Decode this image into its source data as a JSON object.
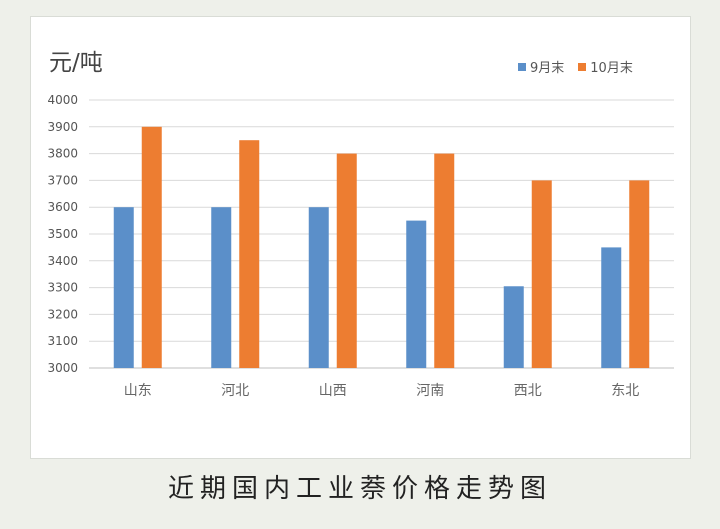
{
  "caption": "近期国内工业萘价格走势图",
  "chart_data": {
    "type": "bar",
    "unit_label": "元/吨",
    "categories": [
      "山东",
      "河北",
      "山西",
      "河南",
      "西北",
      "东北"
    ],
    "series": [
      {
        "name": "9月末",
        "color": "#5b8fc9",
        "values": [
          3600,
          3600,
          3600,
          3550,
          3305,
          3450
        ]
      },
      {
        "name": "10月末",
        "color": "#ed7d31",
        "values": [
          3900,
          3850,
          3800,
          3800,
          3700,
          3700
        ]
      }
    ],
    "ylim": [
      3000,
      4000
    ],
    "yticks": [
      "3000",
      "3100",
      "3200",
      "3300",
      "3400",
      "3500",
      "3600",
      "3700",
      "3800",
      "3900",
      "4000"
    ],
    "grid": true,
    "legend_position": "top-right"
  }
}
